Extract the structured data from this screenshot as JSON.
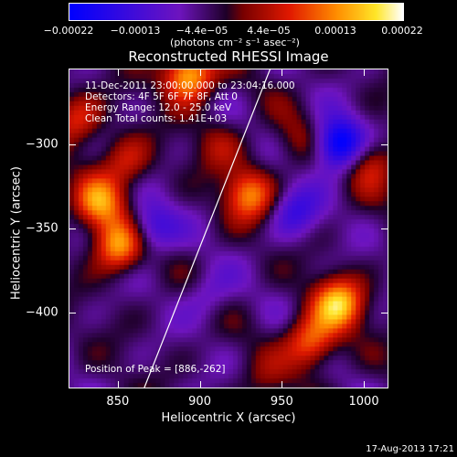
{
  "chart_data": {
    "type": "heatmap",
    "title": "Reconstructed RHESSI Image",
    "xlabel": "Heliocentric X (arcsec)",
    "ylabel": "Heliocentric Y (arcsec)",
    "xlim": [
      820,
      1015
    ],
    "ylim": [
      -445,
      -255
    ],
    "x_ticks": [
      850,
      900,
      950,
      1000
    ],
    "x_tick_labels": [
      "850",
      "900",
      "950",
      "1000"
    ],
    "y_ticks": [
      -300,
      -350,
      -400
    ],
    "y_tick_labels": [
      "−300",
      "−350",
      "−400"
    ],
    "colorbar": {
      "tick_labels": [
        "−0.00022",
        "−0.00013",
        "−4.4e−05",
        "4.4e−05",
        "0.00013",
        "0.00022"
      ],
      "range": [
        -0.00022,
        0.00022
      ],
      "unit_label": "(photons cm⁻² s⁻¹ asec⁻²)"
    },
    "annotations": {
      "time_range": "11-Dec-2011 23:00:00.000 to 23:04:16.000",
      "detectors": "Detectors: 4F 5F 6F 7F 8F, Att 0",
      "energy_range": "Energy Range: 12.0 - 25.0 keV",
      "clean": "Clean     Total counts: 1.41E+03",
      "peak": "Position of Peak = [886,-262]"
    },
    "limb_line": [
      [
        866,
        -445
      ],
      [
        943,
        -255
      ]
    ],
    "image_blobs": [
      {
        "x": 893,
        "y": -258,
        "value": 0.00022
      },
      {
        "x": 850,
        "y": -360,
        "value": 0.00019
      },
      {
        "x": 838,
        "y": -335,
        "value": 0.00016
      },
      {
        "x": 855,
        "y": -310,
        "value": 0.0001
      },
      {
        "x": 930,
        "y": -330,
        "value": 0.00016
      },
      {
        "x": 985,
        "y": -395,
        "value": 0.0002
      },
      {
        "x": 968,
        "y": -418,
        "value": 0.00016
      },
      {
        "x": 1005,
        "y": -310,
        "value": 0.00011
      },
      {
        "x": 825,
        "y": -285,
        "value": 0.00011
      },
      {
        "x": 912,
        "y": -300,
        "value": 6e-05
      },
      {
        "x": 960,
        "y": -298,
        "value": 6e-05
      },
      {
        "x": 985,
        "y": -300,
        "value": -0.00022
      },
      {
        "x": 870,
        "y": -350,
        "value": -0.00012
      },
      {
        "x": 958,
        "y": -340,
        "value": -0.0001
      },
      {
        "x": 905,
        "y": -390,
        "value": -6e-05
      },
      {
        "x": 940,
        "y": -440,
        "value": 4e-05
      }
    ]
  },
  "timestamp": "17-Aug-2013 17:21"
}
